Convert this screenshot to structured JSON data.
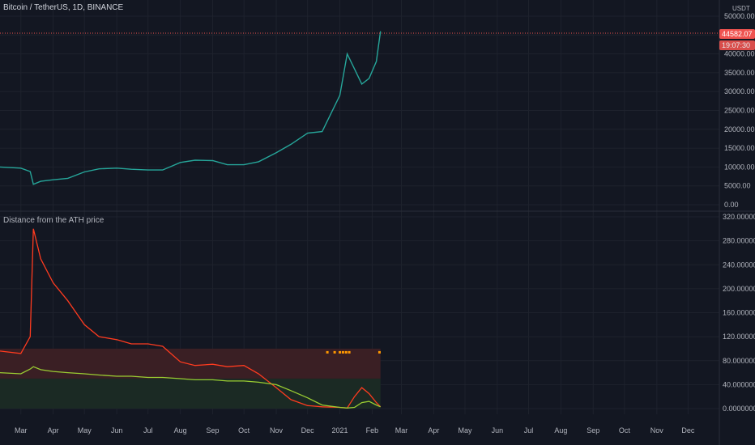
{
  "header": {
    "symbol": "Bitcoin / TetherUS, 1D, BINANCE",
    "currency": "USDT"
  },
  "indicator": {
    "title": "Distance from the ATH price"
  },
  "price_badges": {
    "last_price": "44582.07",
    "countdown": "19:07:30"
  },
  "colors": {
    "background": "#131722",
    "up_candle": "#26a69a",
    "down_candle": "#ef5350",
    "distance_line": "#ff3b1f",
    "avg_line": "#9acd32",
    "marker": "#ff9800",
    "upper_band": "#3a1f24",
    "lower_band": "#1b2a24"
  },
  "chart_data": [
    {
      "type": "line",
      "name": "price",
      "xticks": [
        "Mar",
        "Apr",
        "May",
        "Jun",
        "Jul",
        "Aug",
        "Sep",
        "Oct",
        "Nov",
        "Dec",
        "2021",
        "Feb",
        "Mar",
        "Apr",
        "May",
        "Jun",
        "Jul",
        "Aug",
        "Sep",
        "Oct",
        "Nov",
        "Dec"
      ],
      "yticks": [
        "0.00",
        "5000.00",
        "10000.00",
        "15000.00",
        "20000.00",
        "25000.00",
        "30000.00",
        "35000.00",
        "40000.00",
        "45000.00",
        "50000.00"
      ],
      "ylim": [
        0,
        50000
      ],
      "x_dates": [
        "2020-02-10",
        "2020-03-01",
        "2020-03-10",
        "2020-03-13",
        "2020-03-20",
        "2020-04-01",
        "2020-04-15",
        "2020-05-01",
        "2020-05-15",
        "2020-06-01",
        "2020-06-15",
        "2020-07-01",
        "2020-07-15",
        "2020-08-01",
        "2020-08-15",
        "2020-09-01",
        "2020-09-15",
        "2020-10-01",
        "2020-10-15",
        "2020-11-01",
        "2020-11-15",
        "2020-12-01",
        "2020-12-15",
        "2021-01-01",
        "2021-01-08",
        "2021-01-15",
        "2021-01-22",
        "2021-01-29",
        "2021-02-05",
        "2021-02-09"
      ],
      "values": [
        10000,
        9700,
        8800,
        5400,
        6200,
        6600,
        7000,
        8700,
        9500,
        9700,
        9400,
        9200,
        9200,
        11200,
        11800,
        11700,
        10600,
        10600,
        11400,
        13800,
        16000,
        19000,
        19400,
        29000,
        40000,
        36000,
        32000,
        33500,
        38000,
        46000
      ]
    },
    {
      "type": "line",
      "name": "distance",
      "xticks": [
        "Mar",
        "Apr",
        "May",
        "Jun",
        "Jul",
        "Aug",
        "Sep",
        "Oct",
        "Nov",
        "Dec",
        "2021",
        "Feb",
        "Mar",
        "Apr",
        "May",
        "Jun",
        "Jul",
        "Aug",
        "Sep",
        "Oct",
        "Nov",
        "Dec"
      ],
      "yticks": [
        "0.00000000",
        "40.00000000",
        "80.00000000",
        "120.00000000",
        "160.00000000",
        "200.00000000",
        "240.00000000",
        "280.00000000",
        "320.00000000"
      ],
      "ylim": [
        0,
        320
      ],
      "x_dates": [
        "2020-02-10",
        "2020-03-01",
        "2020-03-10",
        "2020-03-13",
        "2020-03-20",
        "2020-04-01",
        "2020-04-15",
        "2020-05-01",
        "2020-05-15",
        "2020-06-01",
        "2020-06-15",
        "2020-07-01",
        "2020-07-15",
        "2020-08-01",
        "2020-08-15",
        "2020-09-01",
        "2020-09-15",
        "2020-10-01",
        "2020-10-15",
        "2020-11-01",
        "2020-11-15",
        "2020-12-01",
        "2020-12-15",
        "2021-01-01",
        "2021-01-08",
        "2021-01-15",
        "2021-01-22",
        "2021-01-29",
        "2021-02-05",
        "2021-02-09"
      ],
      "values": [
        96,
        92,
        120,
        300,
        250,
        210,
        180,
        140,
        120,
        115,
        108,
        108,
        104,
        78,
        72,
        74,
        70,
        72,
        58,
        35,
        15,
        5,
        3,
        2,
        1,
        20,
        35,
        25,
        10,
        3
      ],
      "avg_values": [
        60,
        58,
        66,
        70,
        65,
        62,
        60,
        58,
        56,
        54,
        54,
        52,
        52,
        50,
        48,
        48,
        46,
        46,
        44,
        40,
        30,
        18,
        6,
        2,
        1,
        2,
        10,
        12,
        6,
        3
      ],
      "band_upper": [
        50,
        100
      ],
      "band_lower": [
        0,
        50
      ]
    }
  ]
}
